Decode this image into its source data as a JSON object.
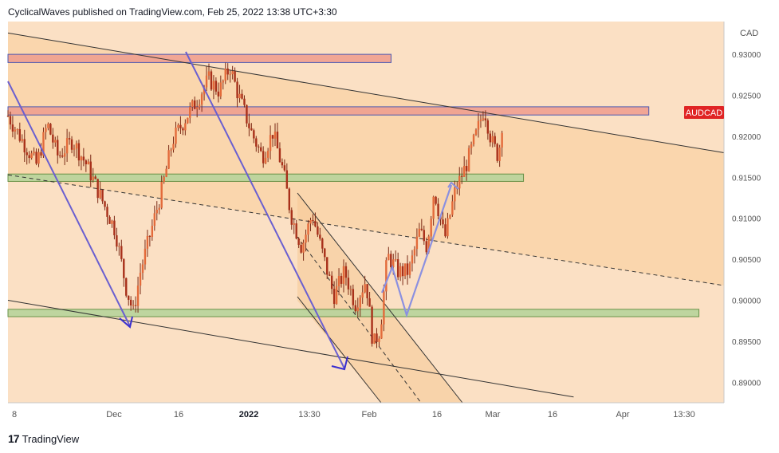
{
  "header": {
    "caption": "CyclicalWaves published on TradingView.com, Feb 25, 2022 13:38 UTC+3:30"
  },
  "footer": {
    "logo_glyph": "17",
    "brand": "TradingView"
  },
  "colors": {
    "plot_bg": "#fbe0c4",
    "channel_fill": "#f9d3a6",
    "red_zone": "#f0a090",
    "green_zone": "#b8d49c",
    "candle": "#d9542b",
    "wave_line": "#6a5fd0",
    "label_bg": "#e02424"
  },
  "chart_data": {
    "type": "candlestick",
    "symbol_label": "AUDCAD",
    "currency": "CAD",
    "last_price": 0.922,
    "ylim": [
      0.8875,
      0.934
    ],
    "y_ticks": [
      "0.93000",
      "0.92500",
      "0.92000",
      "0.91500",
      "0.91000",
      "0.90500",
      "0.90000",
      "0.89500",
      "0.89000"
    ],
    "x_ticks": [
      "8",
      "Dec",
      "16",
      "2022",
      "13:30",
      "Feb",
      "16",
      "Mar",
      "16",
      "Apr",
      "13:30"
    ],
    "price_path": [
      [
        0,
        0.9225
      ],
      [
        0.02,
        0.9195
      ],
      [
        0.04,
        0.9165
      ],
      [
        0.055,
        0.9215
      ],
      [
        0.07,
        0.9175
      ],
      [
        0.09,
        0.9195
      ],
      [
        0.11,
        0.9165
      ],
      [
        0.13,
        0.9125
      ],
      [
        0.15,
        0.9085
      ],
      [
        0.165,
        0.9015
      ],
      [
        0.175,
        0.8985
      ],
      [
        0.185,
        0.9035
      ],
      [
        0.2,
        0.9085
      ],
      [
        0.215,
        0.9135
      ],
      [
        0.23,
        0.9195
      ],
      [
        0.25,
        0.9225
      ],
      [
        0.265,
        0.9245
      ],
      [
        0.28,
        0.927
      ],
      [
        0.295,
        0.9255
      ],
      [
        0.31,
        0.9285
      ],
      [
        0.32,
        0.9255
      ],
      [
        0.34,
        0.9205
      ],
      [
        0.355,
        0.9175
      ],
      [
        0.37,
        0.9205
      ],
      [
        0.385,
        0.9155
      ],
      [
        0.395,
        0.9105
      ],
      [
        0.41,
        0.9065
      ],
      [
        0.425,
        0.9105
      ],
      [
        0.44,
        0.9055
      ],
      [
        0.455,
        0.9005
      ],
      [
        0.47,
        0.9035
      ],
      [
        0.485,
        0.8995
      ],
      [
        0.5,
        0.9025
      ],
      [
        0.51,
        0.8945
      ],
      [
        0.52,
        0.8965
      ],
      [
        0.53,
        0.9055
      ],
      [
        0.545,
        0.9035
      ],
      [
        0.56,
        0.9035
      ],
      [
        0.575,
        0.9085
      ],
      [
        0.585,
        0.9065
      ],
      [
        0.595,
        0.9135
      ],
      [
        0.61,
        0.9075
      ],
      [
        0.625,
        0.9135
      ],
      [
        0.64,
        0.9165
      ],
      [
        0.655,
        0.9205
      ],
      [
        0.665,
        0.9235
      ],
      [
        0.675,
        0.9195
      ],
      [
        0.685,
        0.9175
      ],
      [
        0.69,
        0.9215
      ]
    ],
    "zones": [
      {
        "kind": "resistance",
        "from": 0.929,
        "to": 0.93,
        "x_start": 0.0,
        "x_end": 0.535
      },
      {
        "kind": "resistance",
        "from": 0.9226,
        "to": 0.9236,
        "x_start": 0.0,
        "x_end": 0.895
      },
      {
        "kind": "support",
        "from": 0.9145,
        "to": 0.9154,
        "x_start": 0.0,
        "x_end": 0.72
      },
      {
        "kind": "support",
        "from": 0.898,
        "to": 0.8989,
        "x_start": 0.0,
        "x_end": 0.965
      }
    ],
    "trendlines": [
      {
        "style": "solid",
        "points": [
          [
            0.0,
            0.9326
          ],
          [
            1.0,
            0.918
          ]
        ]
      },
      {
        "style": "solid",
        "points": [
          [
            0.0,
            0.9
          ],
          [
            0.79,
            0.8882
          ]
        ]
      },
      {
        "style": "dashed",
        "points": [
          [
            0.0,
            0.9153
          ],
          [
            1.0,
            0.9018
          ]
        ]
      }
    ],
    "grid": false
  }
}
